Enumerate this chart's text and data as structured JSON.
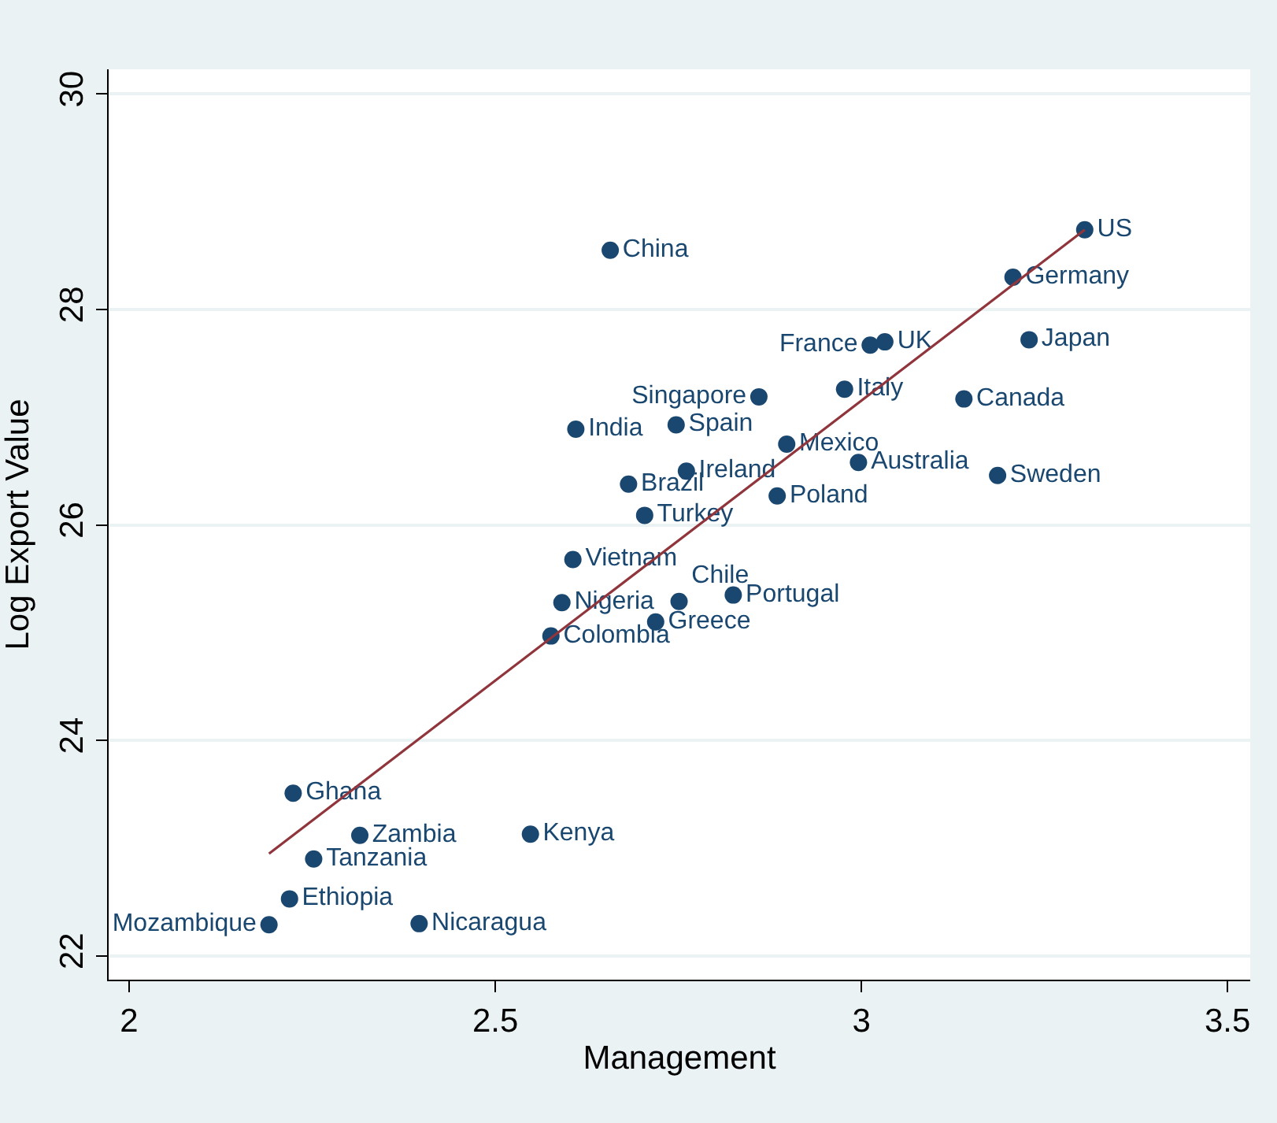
{
  "chart_data": {
    "type": "scatter",
    "xlabel": "Management",
    "ylabel": "Log Export Value",
    "xlim": [
      1.972,
      3.531
    ],
    "ylim": [
      21.78,
      30.23
    ],
    "xticks": [
      2,
      2.5,
      3,
      3.5
    ],
    "yticks": [
      22,
      24,
      26,
      28,
      30
    ],
    "grid": "y",
    "series": [
      {
        "marker": "circle",
        "color": "#1a476f",
        "x": [
          3.305,
          3.207,
          2.657,
          3.229,
          3.032,
          3.012,
          2.977,
          3.14,
          2.86,
          2.61,
          2.747,
          2.898,
          2.996,
          3.186,
          2.761,
          2.682,
          2.885,
          2.704,
          2.606,
          2.591,
          2.751,
          2.825,
          2.719,
          2.576,
          2.224,
          2.315,
          2.548,
          2.252,
          2.219,
          2.191,
          2.396
        ],
        "values": [
          28.74,
          28.3,
          28.55,
          27.72,
          27.7,
          27.67,
          27.26,
          27.17,
          27.19,
          26.89,
          26.93,
          26.75,
          26.58,
          26.46,
          26.5,
          26.38,
          26.27,
          26.09,
          25.68,
          25.28,
          25.29,
          25.35,
          25.1,
          24.97,
          23.51,
          23.12,
          23.13,
          22.9,
          22.53,
          22.29,
          22.3
        ],
        "value_labels": [
          "US",
          "Germany",
          "China",
          "Japan",
          "UK",
          "France",
          "Italy",
          "Canada",
          "Singapore",
          "India",
          "Spain",
          "Mexico",
          "Australia",
          "Sweden",
          "Ireland",
          "Brazil",
          "Poland",
          "Turkey",
          "Vietnam",
          "Nigeria",
          "Chile",
          "Portugal",
          "Greece",
          "Colombia",
          "Ghana",
          "Zambia",
          "Kenya",
          "Tanzania",
          "Ethiopia",
          "Mozambique",
          "Nicaragua"
        ]
      },
      {
        "type": "line",
        "color": "#90353b",
        "x": [
          2.191,
          3.305
        ],
        "values": [
          22.95,
          28.74
        ]
      }
    ]
  }
}
